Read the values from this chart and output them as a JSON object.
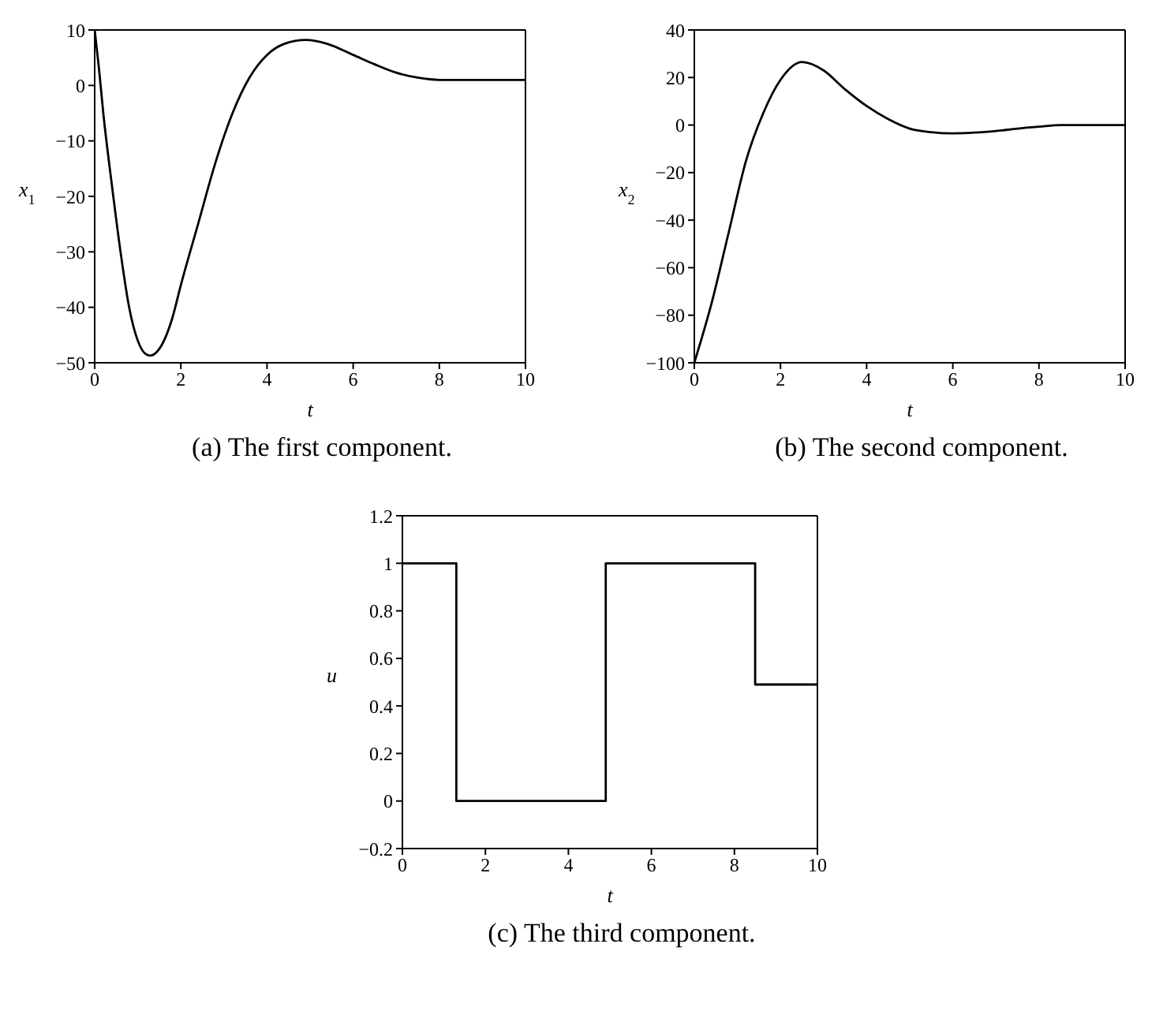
{
  "chart_data": [
    {
      "type": "line",
      "title": "(a) The first component.",
      "xlabel": "t",
      "ylabel": "x$_{1}$",
      "xlim": [
        0,
        10
      ],
      "xticks": [
        0,
        2,
        4,
        6,
        8,
        10
      ],
      "ylim": [
        -50,
        10
      ],
      "yticks": [
        -50,
        -40,
        -30,
        -20,
        -10,
        0,
        10
      ],
      "marker": "none",
      "line_style": "solid",
      "series": [
        {
          "color": "#000000",
          "x": [
            0,
            0.1,
            0.2,
            0.4,
            0.6,
            0.8,
            1.0,
            1.2,
            1.3,
            1.5,
            1.8,
            2.0,
            2.4,
            2.8,
            3.2,
            3.6,
            4.0,
            4.4,
            4.9,
            5.4,
            6.0,
            6.5,
            7.0,
            7.5,
            8.0,
            8.5,
            10
          ],
          "values": [
            10,
            3,
            -5,
            -18,
            -30,
            -40,
            -46,
            -48.5,
            -48.7,
            -47.5,
            -42,
            -36,
            -25,
            -14,
            -5,
            1.5,
            5.5,
            7.5,
            8.2,
            7.5,
            5.5,
            3.8,
            2.3,
            1.4,
            1,
            1,
            1
          ]
        }
      ]
    },
    {
      "type": "line",
      "title": "(b) The second component.",
      "xlabel": "t",
      "ylabel": "x$_{2}$",
      "xlim": [
        0,
        10
      ],
      "xticks": [
        0,
        2,
        4,
        6,
        8,
        10
      ],
      "ylim": [
        -100,
        40
      ],
      "yticks": [
        -100,
        -80,
        -60,
        -40,
        -20,
        0,
        20,
        40
      ],
      "marker": "none",
      "line_style": "solid",
      "series": [
        {
          "color": "#000000",
          "x": [
            0,
            0.4,
            0.8,
            1.2,
            1.6,
            2.0,
            2.5,
            3.0,
            3.5,
            4.0,
            4.5,
            5.0,
            5.5,
            6.0,
            6.5,
            7.0,
            7.5,
            8.0,
            8.5,
            10
          ],
          "values": [
            -100,
            -75,
            -45,
            -15,
            5,
            19,
            26.5,
            23,
            15,
            8,
            2.5,
            -1.5,
            -3,
            -3.5,
            -3.2,
            -2.5,
            -1.5,
            -0.7,
            0,
            0
          ]
        }
      ]
    },
    {
      "type": "step",
      "title": "(c) The third component.",
      "xlabel": "t",
      "ylabel": "u",
      "xlim": [
        0,
        10
      ],
      "xticks": [
        0,
        2,
        4,
        6,
        8,
        10
      ],
      "ylim": [
        -0.2,
        1.2
      ],
      "yticks": [
        -0.2,
        0,
        0.2,
        0.4,
        0.6,
        0.8,
        1,
        1.2
      ],
      "marker": "none",
      "line_style": "solid",
      "series": [
        {
          "color": "#000000",
          "x": [
            0,
            1.3,
            4.9,
            8.5,
            10
          ],
          "values": [
            1,
            0,
            1,
            0.49,
            0.49
          ]
        }
      ]
    }
  ]
}
